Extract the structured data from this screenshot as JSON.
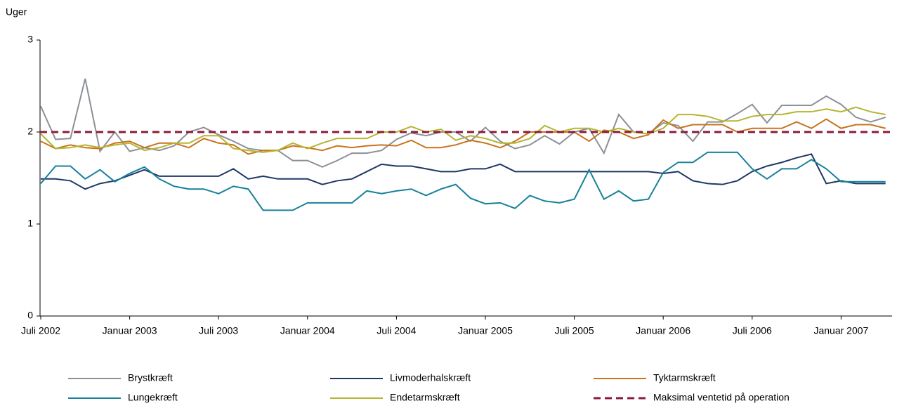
{
  "chart_data": {
    "type": "line",
    "y_label": "Uger",
    "categories": [
      "Juli 2002",
      null,
      null,
      null,
      null,
      null,
      "Januar 2003",
      null,
      null,
      null,
      null,
      null,
      "Juli 2003",
      null,
      null,
      null,
      null,
      null,
      "Januar 2004",
      null,
      null,
      null,
      null,
      null,
      "Juli 2004",
      null,
      null,
      null,
      null,
      null,
      "Januar 2005",
      null,
      null,
      null,
      null,
      null,
      "Juli 2005",
      null,
      null,
      null,
      null,
      null,
      "Januar 2006",
      null,
      null,
      null,
      null,
      null,
      "Juli 2006",
      null,
      null,
      null,
      null,
      null,
      "Januar 2007",
      null,
      null,
      null
    ],
    "series": [
      {
        "name": "Brystkræft",
        "color": "#8c9097",
        "values": [
          2.28,
          1.92,
          1.93,
          2.58,
          1.79,
          2.0,
          1.79,
          1.83,
          1.8,
          1.85,
          2.0,
          2.05,
          1.97,
          1.9,
          1.82,
          1.8,
          1.8,
          1.69,
          1.69,
          1.62,
          1.69,
          1.77,
          1.77,
          1.8,
          1.92,
          1.99,
          1.96,
          2.0,
          2.0,
          1.9,
          2.05,
          1.9,
          1.82,
          1.86,
          1.96,
          1.87,
          2.0,
          2.04,
          1.77,
          2.19,
          2.0,
          1.98,
          2.1,
          2.07,
          1.9,
          2.11,
          2.11,
          2.2,
          2.3,
          2.1,
          2.29,
          2.29,
          2.29,
          2.39,
          2.3,
          2.16,
          2.11,
          2.16
        ]
      },
      {
        "name": "Livmoderhalskræft",
        "color": "#1f3864",
        "values": [
          1.49,
          1.49,
          1.47,
          1.38,
          1.44,
          1.47,
          1.53,
          1.59,
          1.52,
          1.52,
          1.52,
          1.52,
          1.52,
          1.6,
          1.49,
          1.52,
          1.49,
          1.49,
          1.49,
          1.43,
          1.47,
          1.49,
          1.57,
          1.65,
          1.63,
          1.63,
          1.6,
          1.57,
          1.57,
          1.6,
          1.6,
          1.65,
          1.57,
          1.57,
          1.57,
          1.57,
          1.57,
          1.57,
          1.57,
          1.57,
          1.57,
          1.57,
          1.55,
          1.57,
          1.47,
          1.44,
          1.43,
          1.47,
          1.57,
          1.63,
          1.67,
          1.72,
          1.76,
          1.44,
          1.47,
          1.44,
          1.44,
          1.44
        ]
      },
      {
        "name": "Tyktarmskræft",
        "color": "#c8731e",
        "values": [
          1.9,
          1.82,
          1.86,
          1.83,
          1.82,
          1.88,
          1.9,
          1.83,
          1.88,
          1.88,
          1.83,
          1.93,
          1.88,
          1.86,
          1.76,
          1.8,
          1.8,
          1.85,
          1.83,
          1.8,
          1.85,
          1.83,
          1.85,
          1.86,
          1.85,
          1.91,
          1.83,
          1.83,
          1.86,
          1.91,
          1.88,
          1.83,
          1.9,
          2.0,
          2.0,
          2.0,
          2.0,
          1.9,
          2.02,
          2.0,
          1.93,
          1.97,
          2.13,
          2.04,
          2.08,
          2.08,
          2.08,
          2.0,
          2.04,
          2.04,
          2.04,
          2.11,
          2.04,
          2.14,
          2.04,
          2.08,
          2.08,
          2.04
        ]
      },
      {
        "name": "Lungekræft",
        "color": "#17819a",
        "values": [
          1.44,
          1.63,
          1.63,
          1.49,
          1.59,
          1.46,
          1.55,
          1.62,
          1.49,
          1.41,
          1.38,
          1.38,
          1.33,
          1.41,
          1.38,
          1.15,
          1.15,
          1.15,
          1.23,
          1.23,
          1.23,
          1.23,
          1.36,
          1.33,
          1.36,
          1.38,
          1.31,
          1.38,
          1.43,
          1.28,
          1.22,
          1.23,
          1.17,
          1.31,
          1.25,
          1.23,
          1.27,
          1.59,
          1.27,
          1.36,
          1.25,
          1.27,
          1.56,
          1.67,
          1.67,
          1.78,
          1.78,
          1.78,
          1.6,
          1.49,
          1.6,
          1.6,
          1.7,
          1.6,
          1.46,
          1.46,
          1.46,
          1.46
        ]
      },
      {
        "name": "Endetarmskræft",
        "color": "#b5b532",
        "values": [
          1.98,
          1.82,
          1.83,
          1.86,
          1.83,
          1.86,
          1.88,
          1.8,
          1.83,
          1.88,
          1.88,
          1.96,
          1.96,
          1.82,
          1.8,
          1.78,
          1.8,
          1.88,
          1.82,
          1.88,
          1.93,
          1.93,
          1.93,
          2.0,
          2.0,
          2.06,
          2.0,
          2.03,
          1.91,
          1.96,
          1.93,
          1.88,
          1.88,
          1.93,
          2.07,
          2.0,
          2.04,
          2.04,
          2.0,
          2.04,
          2.0,
          1.98,
          2.04,
          2.19,
          2.19,
          2.17,
          2.12,
          2.12,
          2.17,
          2.19,
          2.19,
          2.22,
          2.22,
          2.25,
          2.22,
          2.27,
          2.22,
          2.19
        ]
      }
    ],
    "reference": {
      "name": "Maksimal ventetid på operation",
      "value": 2,
      "color": "#8b1a3a"
    },
    "ylim": [
      0,
      3
    ],
    "yticks": [
      0,
      1,
      2,
      3
    ],
    "grid": false
  }
}
